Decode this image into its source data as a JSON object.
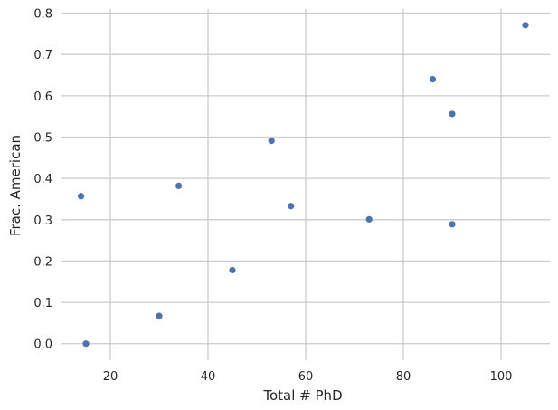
{
  "chart_data": {
    "type": "scatter",
    "title": "",
    "xlabel": "Total # PhD",
    "ylabel": "Frac. American",
    "xlim": [
      10,
      110
    ],
    "ylim": [
      -0.04,
      0.81
    ],
    "x_ticks": [
      20,
      40,
      60,
      80,
      100
    ],
    "y_ticks": [
      0.0,
      0.1,
      0.2,
      0.3,
      0.4,
      0.5,
      0.6,
      0.7,
      0.8
    ],
    "x_tick_labels": [
      "20",
      "40",
      "60",
      "80",
      "100"
    ],
    "y_tick_labels": [
      "0.0",
      "0.1",
      "0.2",
      "0.3",
      "0.4",
      "0.5",
      "0.6",
      "0.7",
      "0.8"
    ],
    "grid": true,
    "point_color": "#4c72b0",
    "points": [
      {
        "x": 14,
        "y": 0.357
      },
      {
        "x": 15,
        "y": 0.0
      },
      {
        "x": 30,
        "y": 0.067
      },
      {
        "x": 34,
        "y": 0.382
      },
      {
        "x": 45,
        "y": 0.178
      },
      {
        "x": 53,
        "y": 0.491
      },
      {
        "x": 57,
        "y": 0.333
      },
      {
        "x": 73,
        "y": 0.301
      },
      {
        "x": 86,
        "y": 0.64
      },
      {
        "x": 90,
        "y": 0.556
      },
      {
        "x": 90,
        "y": 0.289
      },
      {
        "x": 105,
        "y": 0.771
      }
    ]
  }
}
